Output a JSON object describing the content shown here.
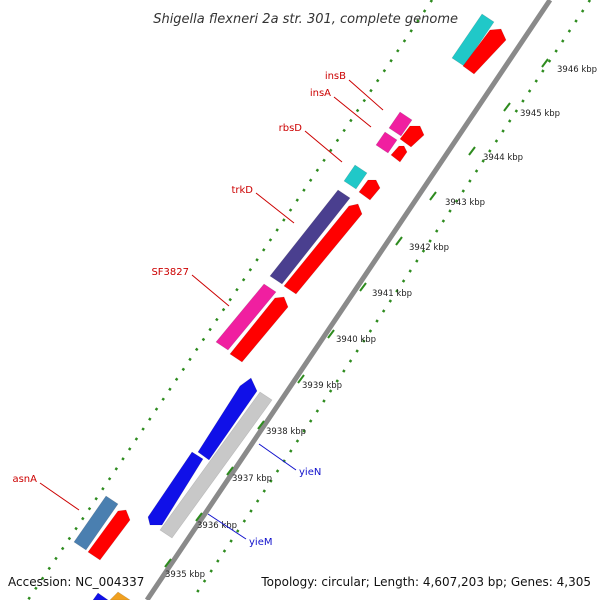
{
  "title": "Shigella flexneri 2a str. 301, complete genome",
  "footer": {
    "accession": "Accession: NC_004337",
    "summary": "Topology: circular; Length: 4,607,203 bp; Genes: 4,305"
  },
  "colors": {
    "backbone": "#8a8a8a",
    "tick_dots": "#2e8b1f",
    "cds": "#ff0000",
    "rrna_cyan": "#20c8c8",
    "insertion_pink": "#f01fa0",
    "trkD_purple": "#4a3f8f",
    "asnA_steel": "#4a7fb0",
    "yie_blue": "#1010e8",
    "silver": "#c8c8c8",
    "label_red": "#cc0000",
    "label_blue": "#1010cc"
  },
  "ticks": [
    "3935 kbp",
    "3936 kbp",
    "3937 kbp",
    "3938 kbp",
    "3939 kbp",
    "3940 kbp",
    "3941 kbp",
    "3942 kbp",
    "3943 kbp",
    "3944 kbp",
    "3945 kbp",
    "3946 kbp"
  ],
  "gene_labels": [
    {
      "id": "insB",
      "text": "insB",
      "color": "red"
    },
    {
      "id": "insA",
      "text": "insA",
      "color": "red"
    },
    {
      "id": "rbsD",
      "text": "rbsD",
      "color": "red"
    },
    {
      "id": "trkD",
      "text": "trkD",
      "color": "red"
    },
    {
      "id": "SF3827",
      "text": "SF3827",
      "color": "red"
    },
    {
      "id": "asnA",
      "text": "asnA",
      "color": "red"
    },
    {
      "id": "yieN",
      "text": "yieN",
      "color": "blue"
    },
    {
      "id": "yieM",
      "text": "yieM",
      "color": "blue"
    }
  ]
}
